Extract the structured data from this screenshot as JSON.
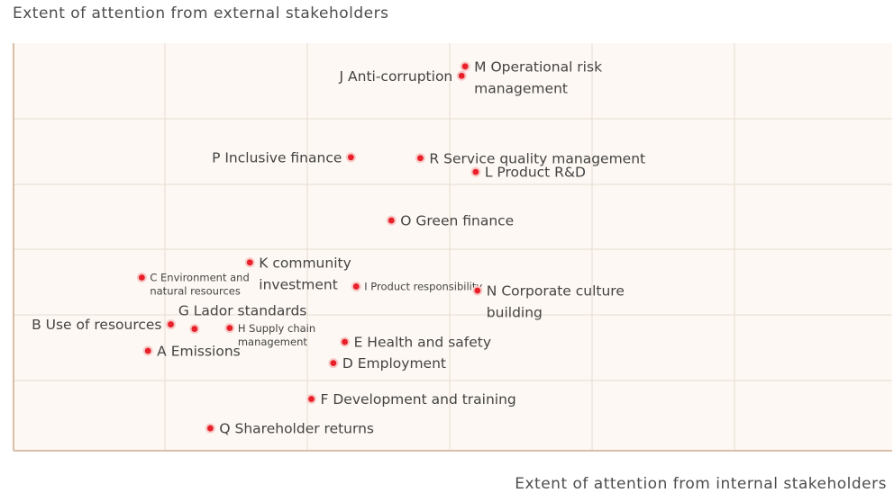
{
  "chart_data": {
    "type": "scatter",
    "xlabel": "Extent of attention from internal stakeholders",
    "ylabel": "Extent of attention from external stakeholders",
    "xlim": [
      0,
      100
    ],
    "ylim": [
      0,
      100
    ],
    "grid": true,
    "colors": {
      "background": "#fdf8f3",
      "grid": "#e6dcd0",
      "axis": "#d9bfa8",
      "point": "#e8202a",
      "point_halo": "#f7c9c6"
    },
    "points": [
      {
        "id": "A",
        "label": "A Emissions",
        "lines": [
          "A Emissions"
        ],
        "size": "large",
        "anchor": "right",
        "x": 15.3,
        "y": 24.5
      },
      {
        "id": "B",
        "label": "B Use of resources",
        "lines": [
          "B Use of resources"
        ],
        "size": "large",
        "anchor": "left",
        "x": 17.9,
        "y": 31.0
      },
      {
        "id": "C",
        "label": "C Environment and natural resources",
        "lines": [
          "C Environment and",
          "natural resources"
        ],
        "size": "small",
        "anchor": "right",
        "x": 14.6,
        "y": 42.5
      },
      {
        "id": "D",
        "label": "D Employment",
        "lines": [
          "D Employment"
        ],
        "size": "large",
        "anchor": "right",
        "x": 36.4,
        "y": 21.5
      },
      {
        "id": "E",
        "label": "E Health and safety",
        "lines": [
          "E Health and safety"
        ],
        "size": "large",
        "anchor": "right",
        "x": 37.7,
        "y": 26.7
      },
      {
        "id": "F",
        "label": "F Development and training",
        "lines": [
          "F Development and training"
        ],
        "size": "large",
        "anchor": "right",
        "x": 33.9,
        "y": 12.7
      },
      {
        "id": "G",
        "label": "G Lador standards",
        "lines": [
          "G Lador standards"
        ],
        "size": "large",
        "anchor": "above-right",
        "x": 20.6,
        "y": 29.9
      },
      {
        "id": "H",
        "label": "H Supply chain management",
        "lines": [
          "H Supply chain",
          "management"
        ],
        "size": "small",
        "anchor": "right",
        "x": 24.6,
        "y": 30.1
      },
      {
        "id": "I",
        "label": "I Product responsibility",
        "lines": [
          "I Product responsibility"
        ],
        "size": "small",
        "anchor": "right",
        "x": 39.0,
        "y": 40.3
      },
      {
        "id": "J",
        "label": "J Anti-corruption",
        "lines": [
          "J Anti-corruption"
        ],
        "size": "large",
        "anchor": "left",
        "x": 51.0,
        "y": 92.0
      },
      {
        "id": "K",
        "label": "K community investment",
        "lines": [
          "K community",
          "investment"
        ],
        "size": "large",
        "anchor": "right",
        "x": 26.9,
        "y": 46.2
      },
      {
        "id": "L",
        "label": "L Product R&D",
        "lines": [
          "L Product R&D"
        ],
        "size": "large",
        "anchor": "right",
        "x": 52.6,
        "y": 68.4
      },
      {
        "id": "M",
        "label": "M Operational risk management",
        "lines": [
          "M Operational risk",
          "management"
        ],
        "size": "large",
        "anchor": "right",
        "x": 51.4,
        "y": 94.3
      },
      {
        "id": "N",
        "label": "N Corporate culture building",
        "lines": [
          "N Corporate culture",
          "building"
        ],
        "size": "large",
        "anchor": "right",
        "x": 52.8,
        "y": 39.3
      },
      {
        "id": "O",
        "label": "O Green finance",
        "lines": [
          "O Green finance"
        ],
        "size": "large",
        "anchor": "right",
        "x": 43.0,
        "y": 56.5
      },
      {
        "id": "P",
        "label": "P Inclusive finance",
        "lines": [
          "P Inclusive finance"
        ],
        "size": "large",
        "anchor": "left",
        "x": 38.4,
        "y": 72.0
      },
      {
        "id": "Q",
        "label": "Q Shareholder returns",
        "lines": [
          "Q Shareholder returns"
        ],
        "size": "large",
        "anchor": "right",
        "x": 22.4,
        "y": 5.5
      },
      {
        "id": "R",
        "label": "R Service quality management",
        "lines": [
          "R Service quality management"
        ],
        "size": "large",
        "anchor": "right",
        "x": 46.3,
        "y": 71.8
      }
    ]
  }
}
